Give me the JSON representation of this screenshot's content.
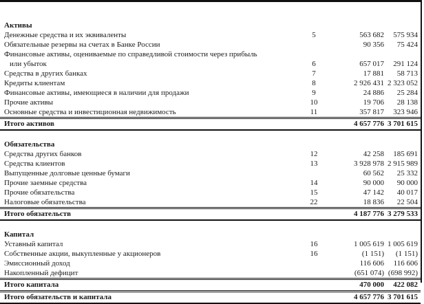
{
  "rows": [
    {
      "type": "spacer"
    },
    {
      "type": "header",
      "label": "Активы"
    },
    {
      "type": "item",
      "label": "Денежные средства и их эквиваленты",
      "note": "5",
      "v1": "563 682",
      "v2": "575 934"
    },
    {
      "type": "item",
      "label": "Обязательные резервы на счетах  в Банке России",
      "note": "",
      "v1": "90 356",
      "v2": "75 424"
    },
    {
      "type": "item",
      "label": "Финансовые активы, оцениваемые по справедливой стоимости через прибыль",
      "note": "",
      "v1": "",
      "v2": ""
    },
    {
      "type": "cont",
      "label": "или убыток",
      "note": "6",
      "v1": "657 017",
      "v2": "291 124"
    },
    {
      "type": "item",
      "label": "Средства в других банках",
      "note": "7",
      "v1": "17 881",
      "v2": "58 713"
    },
    {
      "type": "item",
      "label": "Кредиты клиентам",
      "note": "8",
      "v1": "2 926 431",
      "v2": "2 323 052"
    },
    {
      "type": "item",
      "label": "Финансовые активы, имеющиеся в наличии для продажи",
      "note": "9",
      "v1": "24 886",
      "v2": "25 284"
    },
    {
      "type": "item",
      "label": "Прочие активы",
      "note": "10",
      "v1": "19 706",
      "v2": "28 138"
    },
    {
      "type": "item",
      "label": "Основные средства и инвестиционная недвижимость",
      "note": "11",
      "v1": "357 817",
      "v2": "323 946"
    },
    {
      "type": "total",
      "label": "Итого активов",
      "note": "",
      "v1": "4 657 776",
      "v2": "3 701 615"
    },
    {
      "type": "spacer"
    },
    {
      "type": "header",
      "label": "Обязательства"
    },
    {
      "type": "item",
      "label": "Средства других банков",
      "note": "12",
      "v1": "42 258",
      "v2": "185 691"
    },
    {
      "type": "item",
      "label": "Средства клиентов",
      "note": "13",
      "v1": "3 928 978",
      "v2": "2 915 989"
    },
    {
      "type": "item",
      "label": "Выпущенные долговые ценные бумаги",
      "note": "",
      "v1": "60 562",
      "v2": "25 332"
    },
    {
      "type": "item",
      "label": "Прочие заемные средства",
      "note": "14",
      "v1": "90 000",
      "v2": "90 000"
    },
    {
      "type": "item",
      "label": "Прочие обязательства",
      "note": "15",
      "v1": "47 142",
      "v2": "40 017"
    },
    {
      "type": "item",
      "label": "Налоговые обязательства",
      "note": "22",
      "v1": "18 836",
      "v2": "22 504"
    },
    {
      "type": "total",
      "label": "Итого обязательств",
      "note": "",
      "v1": "4 187 776",
      "v2": "3 279 533"
    },
    {
      "type": "spacer"
    },
    {
      "type": "header",
      "label": "Капитал"
    },
    {
      "type": "item",
      "label": "Уставный капитал",
      "note": "16",
      "v1": "1 005 619",
      "v2": "1 005 619"
    },
    {
      "type": "item",
      "label": "Собственные акции, выкупленные у акционеров",
      "note": "16",
      "v1": "(1 151)",
      "v2": "(1 151)"
    },
    {
      "type": "item",
      "label": "Эмиссионный доход",
      "note": "",
      "v1": "116 606",
      "v2": "116 606"
    },
    {
      "type": "item",
      "label": "Накопленный дефицит",
      "note": "",
      "v1": "(651 074)",
      "v2": "(698 992)"
    },
    {
      "type": "total",
      "label": "Итого капитала",
      "note": "",
      "v1": "470 000",
      "v2": "422 082"
    },
    {
      "type": "total",
      "label": "Итого обязательств и капитала",
      "note": "",
      "v1": "4 657 776",
      "v2": "3 701 615"
    }
  ]
}
